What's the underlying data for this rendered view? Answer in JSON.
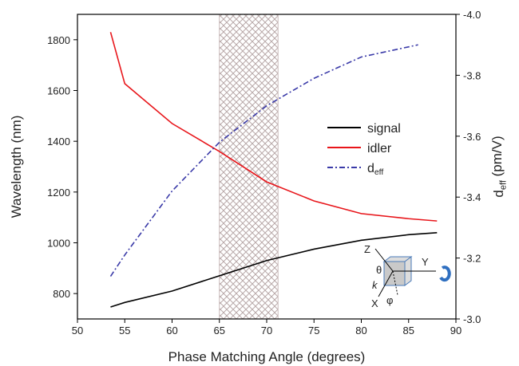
{
  "chart_data": {
    "type": "line",
    "xlabel": "Phase Matching Angle (degrees)",
    "ylabel": "Wavelength (nm)",
    "y2label": "deff (pm/V)",
    "xlim": [
      50,
      90
    ],
    "xticks": [
      50,
      55,
      60,
      65,
      70,
      75,
      80,
      85,
      90
    ],
    "ylim": [
      700,
      1900
    ],
    "yticks": [
      800,
      1000,
      1200,
      1400,
      1600,
      1800
    ],
    "y2lim": [
      -3.0,
      -4.0
    ],
    "y2ticks": [
      {
        "value": -3.0,
        "label": "-3.0"
      },
      -3.2,
      -3.4,
      -3.6,
      -3.8,
      {
        "value": -4.0,
        "label": "-4.0"
      }
    ],
    "shaded_region": [
      65,
      71.2
    ],
    "series": [
      {
        "name": "signal",
        "color": "#000000",
        "x": [
          53.5,
          55,
          60,
          65,
          70,
          75,
          80,
          85,
          88
        ],
        "values": [
          747,
          765,
          810,
          870,
          930,
          975,
          1010,
          1032,
          1040
        ]
      },
      {
        "name": "idler",
        "color": "#e8161b",
        "x": [
          53.5,
          55,
          60,
          65,
          70,
          75,
          80,
          85,
          88
        ],
        "values": [
          1830,
          1627,
          1470,
          1360,
          1240,
          1165,
          1115,
          1095,
          1086
        ]
      },
      {
        "name": "deff",
        "color": "#3a3aa8",
        "axis": "y2",
        "x": [
          53.5,
          55,
          60,
          65,
          70,
          75,
          80,
          86
        ],
        "values": [
          -3.14,
          -3.21,
          -3.42,
          -3.58,
          -3.7,
          -3.79,
          -3.86,
          -3.9
        ]
      }
    ],
    "inset_labels": [
      "Z",
      "Y",
      "X",
      "θ",
      "φ",
      "k"
    ]
  }
}
